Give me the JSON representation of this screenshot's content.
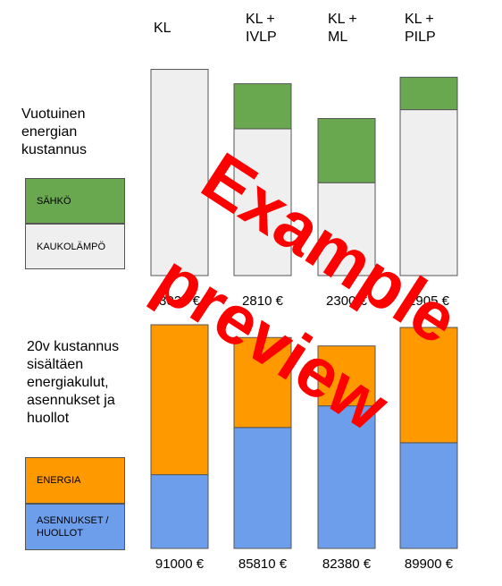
{
  "colors": {
    "electricity": "#6aa84f",
    "district_heat": "#efefef",
    "energy": "#ff9900",
    "installation": "#6d9eeb",
    "watermark": "#ff0000",
    "outline": "#555555"
  },
  "chart_data": [
    {
      "type": "bar",
      "stacked": true,
      "title": "Vuotuinen energian kustannus",
      "categories": [
        "KL",
        "KL +\nIVLP",
        "KL +\nML",
        "KL +\nPILP"
      ],
      "series": [
        {
          "name": "KAUKOLÄMPÖ",
          "values": [
            3020,
            2150,
            1360,
            2430
          ]
        },
        {
          "name": "SÄHKÖ",
          "values": [
            0,
            660,
            940,
            475
          ]
        }
      ],
      "totals_labels": [
        "3020 €",
        "2810 €",
        "2300 €",
        "2905 €"
      ],
      "legend": [
        "SÄHKÖ",
        "KAUKOLÄMPÖ"
      ],
      "ylim": [
        0,
        3250
      ]
    },
    {
      "type": "bar",
      "stacked": true,
      "title": "20v kustannus sisältäen energiakulut, asennukset ja huollot",
      "categories": [
        "KL",
        "KL +\nIVLP",
        "KL +\nML",
        "KL +\nPILP"
      ],
      "series": [
        {
          "name": "ASENNUKSET / HUOLLOT",
          "values": [
            30000,
            49200,
            58000,
            43000
          ]
        },
        {
          "name": "ENERGIA",
          "values": [
            61000,
            36610,
            24380,
            46900
          ]
        }
      ],
      "totals_labels": [
        "91000 €",
        "85810 €",
        "82380 €",
        "89900 €"
      ],
      "legend": [
        "ENERGIA",
        "ASENNUKSET / HUOLLOT"
      ],
      "ylim": [
        0,
        91000
      ]
    }
  ],
  "top": {
    "categories": [
      "KL",
      "KL +\nIVLP",
      "KL +\nML",
      "KL +\nPILP"
    ],
    "title": "Vuotuinen\nenergian\nkustannus",
    "legend_electricity": "SÄHKÖ",
    "legend_district_heat": "KAUKOLÄMPÖ"
  },
  "bottom": {
    "title": "20v kustannus\nsisältäen\nenergiakulut,\nasennukset ja\nhuollot",
    "legend_energy": "ENERGIA",
    "legend_installation": "ASENNUKSET /\nHUOLLOT"
  },
  "watermark": {
    "line1": "Example",
    "line2": "preview"
  }
}
